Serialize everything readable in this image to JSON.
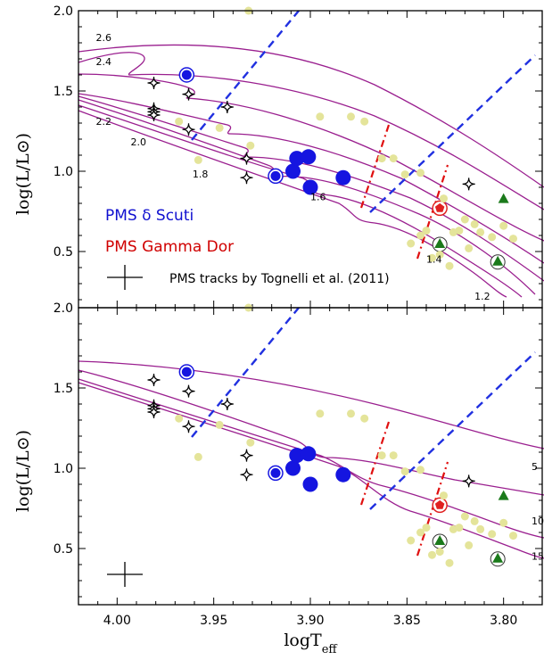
{
  "chart_data": [
    {
      "type": "scatter",
      "ylabel": "log(L/L⊙)",
      "ylim": [
        0.15,
        2.0
      ],
      "xlim": [
        4.02,
        3.78
      ],
      "y_ticks": [
        "0.5",
        "1.0",
        "1.5",
        "2.0"
      ],
      "annotations": {
        "delta_scuti": "PMS δ Scuti",
        "gamma_dor": "PMS Gamma Dor",
        "tracks_source": "PMS tracks by Tognelli et al. (2011)"
      },
      "track_labels": [
        {
          "label": "2.6",
          "x": 4.011,
          "y": 1.81
        },
        {
          "label": "2.4",
          "x": 4.011,
          "y": 1.66
        },
        {
          "label": "2.2",
          "x": 4.011,
          "y": 1.29
        },
        {
          "label": "2.0",
          "x": 3.993,
          "y": 1.16
        },
        {
          "label": "1.8",
          "x": 3.961,
          "y": 0.96
        },
        {
          "label": "1.6",
          "x": 3.9,
          "y": 0.82
        },
        {
          "label": "1.4",
          "x": 3.84,
          "y": 0.43
        },
        {
          "label": "1.2",
          "x": 3.815,
          "y": 0.2
        }
      ],
      "series": [
        {
          "marker": "blue-dot",
          "points": [
            [
              3.909,
              1.0
            ],
            [
              3.907,
              1.08
            ],
            [
              3.901,
              1.09
            ],
            [
              3.9,
              0.9
            ],
            [
              3.883,
              0.96
            ]
          ]
        },
        {
          "marker": "blue-ringed-dot",
          "points": [
            [
              3.964,
              1.6
            ],
            [
              3.918,
              0.97
            ]
          ]
        },
        {
          "marker": "red-ringed-pentagon",
          "points": [
            [
              3.833,
              0.77
            ]
          ]
        },
        {
          "marker": "green-triangle",
          "points": [
            [
              3.8,
              0.83
            ],
            [
              3.833,
              0.55
            ],
            [
              3.803,
              0.44
            ]
          ]
        },
        {
          "marker": "four-point-star",
          "points": [
            [
              3.981,
              1.55
            ],
            [
              3.981,
              1.39
            ],
            [
              3.981,
              1.37
            ],
            [
              3.981,
              1.35
            ],
            [
              3.963,
              1.48
            ],
            [
              3.963,
              1.26
            ],
            [
              3.943,
              1.4
            ],
            [
              3.933,
              1.08
            ],
            [
              3.933,
              0.96
            ],
            [
              3.818,
              0.92
            ]
          ]
        },
        {
          "marker": "pale-dot",
          "points": [
            [
              3.932,
              2.0
            ],
            [
              3.968,
              1.31
            ],
            [
              3.947,
              1.27
            ],
            [
              3.958,
              1.07
            ],
            [
              3.931,
              1.16
            ],
            [
              3.895,
              1.34
            ],
            [
              3.879,
              1.34
            ],
            [
              3.872,
              1.31
            ],
            [
              3.863,
              1.08
            ],
            [
              3.857,
              1.08
            ],
            [
              3.851,
              0.98
            ],
            [
              3.843,
              0.99
            ],
            [
              3.831,
              0.83
            ],
            [
              3.826,
              0.62
            ],
            [
              3.823,
              0.63
            ],
            [
              3.815,
              0.67
            ],
            [
              3.812,
              0.62
            ],
            [
              3.806,
              0.59
            ],
            [
              3.8,
              0.66
            ],
            [
              3.795,
              0.58
            ],
            [
              3.848,
              0.55
            ],
            [
              3.843,
              0.6
            ],
            [
              3.84,
              0.63
            ],
            [
              3.837,
              0.46
            ],
            [
              3.833,
              0.48
            ],
            [
              3.828,
              0.41
            ],
            [
              3.82,
              0.7
            ],
            [
              3.818,
              0.52
            ]
          ]
        }
      ]
    },
    {
      "type": "scatter",
      "xlabel": "logTeff",
      "ylabel": "log(L/L⊙)",
      "ylim": [
        0.15,
        2.0
      ],
      "xlim": [
        4.02,
        3.78
      ],
      "y_ticks": [
        "0.5",
        "1.0",
        "1.5",
        "2.0"
      ],
      "x_ticks": [
        "4.00",
        "3.95",
        "3.90",
        "3.85",
        "3.80"
      ],
      "track_labels": [
        {
          "label": "5",
          "x": 3.77,
          "y": 0.99
        },
        {
          "label": "10",
          "x": 3.77,
          "y": 0.65
        },
        {
          "label": "15",
          "x": 3.77,
          "y": 0.43
        }
      ],
      "series": [
        {
          "marker": "blue-dot",
          "points": [
            [
              3.909,
              1.0
            ],
            [
              3.907,
              1.08
            ],
            [
              3.901,
              1.09
            ],
            [
              3.9,
              0.9
            ],
            [
              3.883,
              0.96
            ]
          ]
        },
        {
          "marker": "blue-ringed-dot",
          "points": [
            [
              3.964,
              1.6
            ],
            [
              3.918,
              0.97
            ]
          ]
        },
        {
          "marker": "red-ringed-pentagon",
          "points": [
            [
              3.833,
              0.77
            ]
          ]
        },
        {
          "marker": "green-triangle",
          "points": [
            [
              3.8,
              0.83
            ],
            [
              3.833,
              0.55
            ],
            [
              3.803,
              0.44
            ]
          ]
        },
        {
          "marker": "four-point-star",
          "points": [
            [
              3.981,
              1.55
            ],
            [
              3.981,
              1.39
            ],
            [
              3.981,
              1.37
            ],
            [
              3.981,
              1.35
            ],
            [
              3.963,
              1.48
            ],
            [
              3.963,
              1.26
            ],
            [
              3.943,
              1.4
            ],
            [
              3.933,
              1.08
            ],
            [
              3.933,
              0.96
            ],
            [
              3.818,
              0.92
            ]
          ]
        },
        {
          "marker": "pale-dot",
          "points": [
            [
              3.932,
              2.0
            ],
            [
              3.968,
              1.31
            ],
            [
              3.947,
              1.27
            ],
            [
              3.958,
              1.07
            ],
            [
              3.931,
              1.16
            ],
            [
              3.895,
              1.34
            ],
            [
              3.879,
              1.34
            ],
            [
              3.872,
              1.31
            ],
            [
              3.863,
              1.08
            ],
            [
              3.857,
              1.08
            ],
            [
              3.851,
              0.98
            ],
            [
              3.843,
              0.99
            ],
            [
              3.831,
              0.83
            ],
            [
              3.826,
              0.62
            ],
            [
              3.823,
              0.63
            ],
            [
              3.815,
              0.67
            ],
            [
              3.812,
              0.62
            ],
            [
              3.806,
              0.59
            ],
            [
              3.8,
              0.66
            ],
            [
              3.795,
              0.58
            ],
            [
              3.848,
              0.55
            ],
            [
              3.843,
              0.6
            ],
            [
              3.84,
              0.63
            ],
            [
              3.837,
              0.46
            ],
            [
              3.833,
              0.48
            ],
            [
              3.828,
              0.41
            ],
            [
              3.82,
              0.7
            ],
            [
              3.818,
              0.52
            ]
          ]
        }
      ]
    }
  ],
  "colors": {
    "tracks": "#9a1f8f",
    "delta_scuti_edges": "#2030e0",
    "gamma_dor_edges": "#e01010",
    "delta_scuti_points": "#1515e0",
    "gamma_dor_points": "#e02020",
    "triangles": "#1b7a1b",
    "pale_points": "#e4e49a"
  }
}
